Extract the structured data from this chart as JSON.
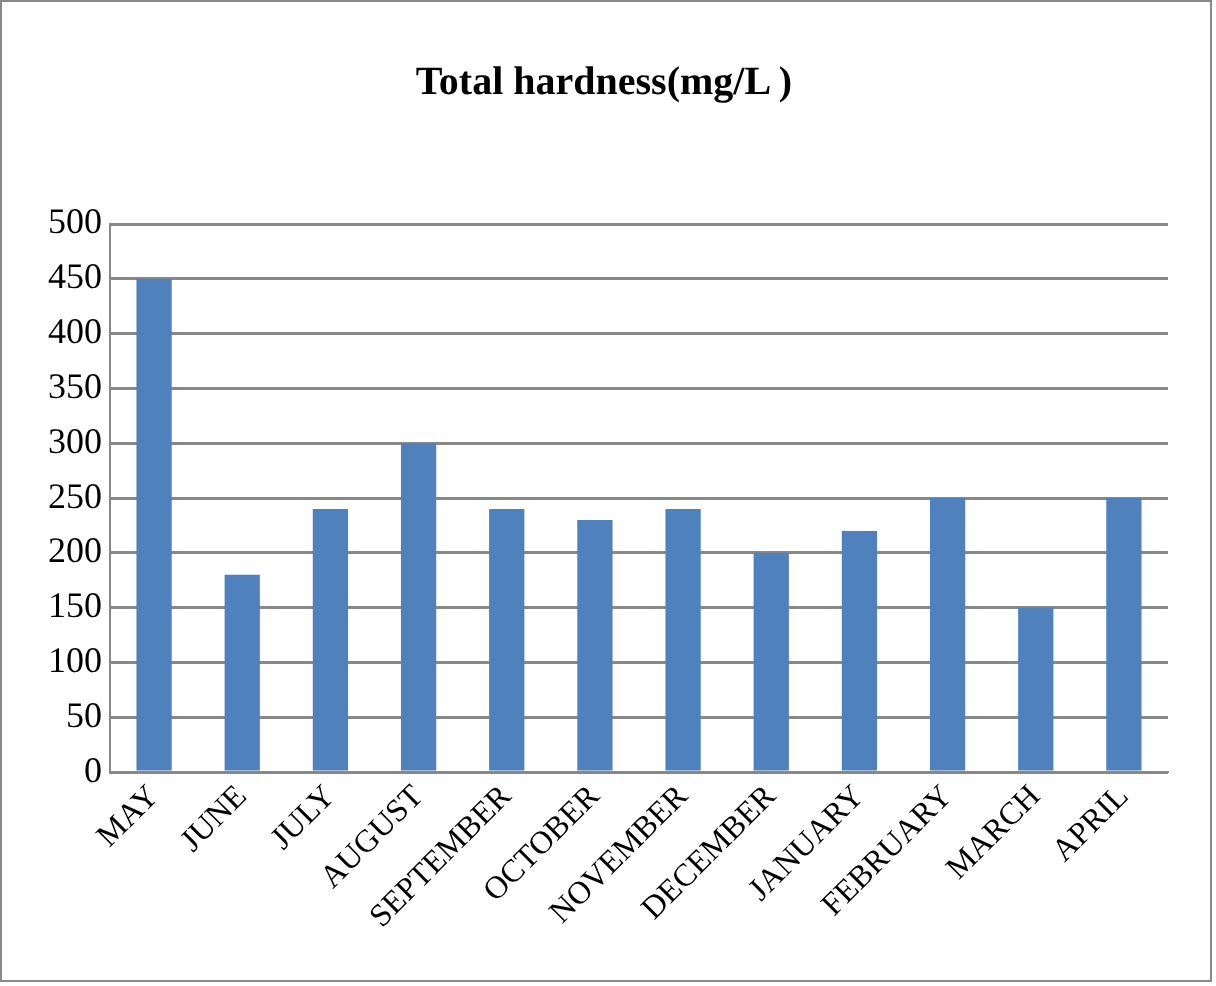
{
  "chart_data": {
    "type": "bar",
    "title": "Total hardness(mg/L )",
    "categories": [
      "MAY",
      "JUNE",
      "JULY",
      "AUGUST",
      "SEPTEMBER",
      "OCTOBER",
      "NOVEMBER",
      "DECEMBER",
      "JANUARY",
      "FEBRUARY",
      "MARCH",
      "APRIL"
    ],
    "values": [
      450,
      180,
      240,
      300,
      240,
      230,
      240,
      200,
      220,
      250,
      150,
      250
    ],
    "color": "#4f81bd",
    "ylim": [
      0,
      500
    ],
    "yticks": [
      0,
      50,
      100,
      150,
      200,
      250,
      300,
      350,
      400,
      450,
      500
    ],
    "grid": "y",
    "legend": false
  }
}
